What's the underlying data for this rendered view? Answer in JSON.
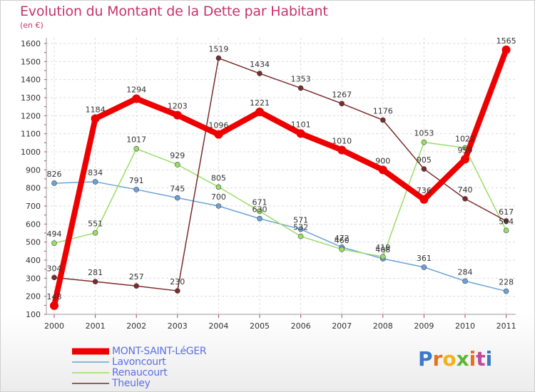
{
  "header": {
    "title": "Evolution du Montant de la Dette par Habitant",
    "subtitle": "(en €)"
  },
  "logo": {
    "text": "Proxiti",
    "colors": [
      "#3a78c9",
      "#e4711f",
      "#f0b31b",
      "#5fb53a",
      "#e4711f",
      "#c04b9a",
      "#3a78c9"
    ]
  },
  "chart_data": {
    "type": "line",
    "title": "Evolution du Montant de la Dette par Habitant",
    "subtitle": "(en €)",
    "xlabel": "",
    "ylabel": "",
    "x": [
      "2000",
      "2001",
      "2002",
      "2003",
      "2004",
      "2005",
      "2006",
      "2007",
      "2008",
      "2009",
      "2010",
      "2011"
    ],
    "ylim": [
      100,
      1600
    ],
    "yticks": [
      100,
      200,
      300,
      400,
      500,
      600,
      700,
      800,
      900,
      1000,
      1100,
      1200,
      1300,
      1400,
      1500,
      1600
    ],
    "grid": true,
    "legend": "bottom-left",
    "series": [
      {
        "name": "Lavoncourt",
        "color": "#6aa3d8",
        "values": [
          826,
          834,
          791,
          745,
          700,
          630,
          571,
          472,
          408,
          361,
          284,
          228
        ],
        "labels": [
          "826",
          "834",
          "791",
          "745",
          "700",
          "630",
          "571",
          "472",
          "408",
          "361",
          "284",
          "228"
        ]
      },
      {
        "name": "Renaucourt",
        "color": "#99dd66",
        "values": [
          494,
          551,
          1017,
          929,
          805,
          671,
          532,
          460,
          419,
          1053,
          1022,
          564
        ],
        "labels": [
          "494",
          "551",
          "1017",
          "929",
          "805",
          "671",
          "532",
          "460",
          "419",
          "1053",
          "1022",
          "564"
        ]
      },
      {
        "name": "Theuley",
        "color": "#7a2b2b",
        "values": [
          304,
          281,
          257,
          230,
          1519,
          1434,
          1353,
          1267,
          1176,
          905,
          740,
          617
        ],
        "labels": [
          "304",
          "281",
          "257",
          "230",
          "1519",
          "1434",
          "1353",
          "1267",
          "1176",
          "905",
          "740",
          "617"
        ]
      },
      {
        "name": "MONT-SAINT-LéGER",
        "color": "#ee0000",
        "values": [
          148,
          1184,
          1294,
          1203,
          1096,
          1221,
          1101,
          1010,
          900,
          736,
          959,
          1565
        ],
        "labels": [
          "148",
          "1184",
          "1294",
          "1203",
          "1096",
          "1221",
          "1101",
          "1010",
          "900",
          "736",
          "959",
          "1565"
        ]
      }
    ],
    "legend_entries": [
      {
        "name": "MONT-SAINT-LéGER",
        "color": "#ee0000",
        "weight": "thick"
      },
      {
        "name": "Lavoncourt",
        "color": "#6aa3d8",
        "weight": "thin"
      },
      {
        "name": "Renaucourt",
        "color": "#99dd66",
        "weight": "thin"
      },
      {
        "name": "Theuley",
        "color": "#7a2b2b",
        "weight": "thin"
      }
    ]
  }
}
